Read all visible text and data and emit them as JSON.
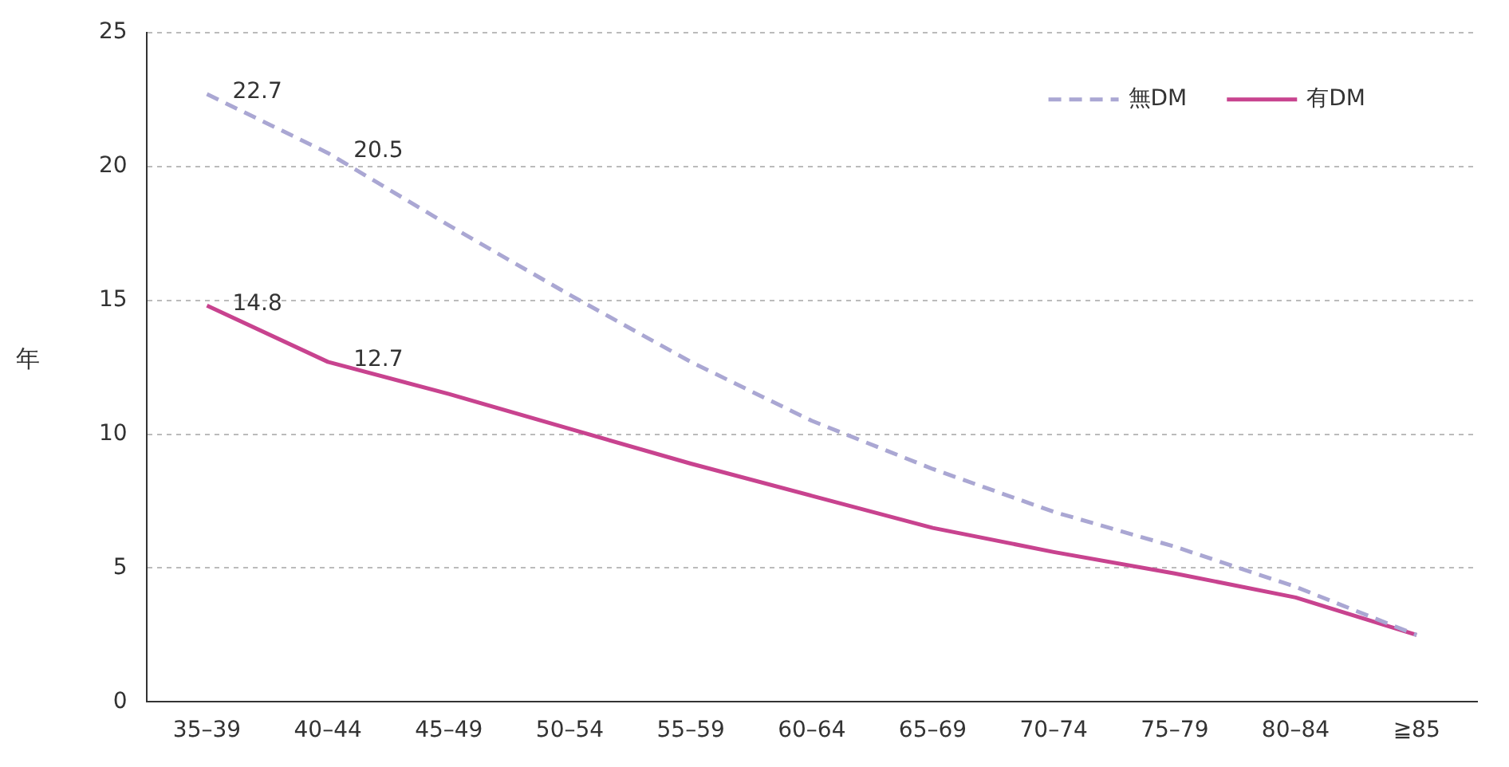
{
  "chart_data": {
    "type": "line",
    "ylabel": "年",
    "categories": [
      "35–39",
      "40–44",
      "45–49",
      "50–54",
      "55–59",
      "60–64",
      "65–69",
      "70–74",
      "75–79",
      "80–84",
      "≧85"
    ],
    "series": [
      {
        "name": "無DM",
        "color": "#aaa7d3",
        "line_style": "dashed",
        "values": [
          22.7,
          20.5,
          17.8,
          15.2,
          12.7,
          10.5,
          8.7,
          7.1,
          5.8,
          4.3,
          2.5
        ],
        "value_labels": [
          "22.7",
          "20.5",
          null,
          null,
          null,
          null,
          null,
          null,
          null,
          null,
          null
        ]
      },
      {
        "name": "有DM",
        "color": "#c8438f",
        "line_style": "solid",
        "values": [
          14.8,
          12.7,
          11.5,
          10.2,
          8.9,
          7.7,
          6.5,
          5.6,
          4.8,
          3.9,
          2.5
        ],
        "value_labels": [
          "14.8",
          "12.7",
          null,
          null,
          null,
          null,
          null,
          null,
          null,
          null,
          null
        ]
      }
    ],
    "ylim": [
      0,
      25
    ],
    "yticks": [
      0,
      5,
      10,
      15,
      20,
      25
    ],
    "grid": "y",
    "legend": "top right",
    "marker": "none"
  }
}
